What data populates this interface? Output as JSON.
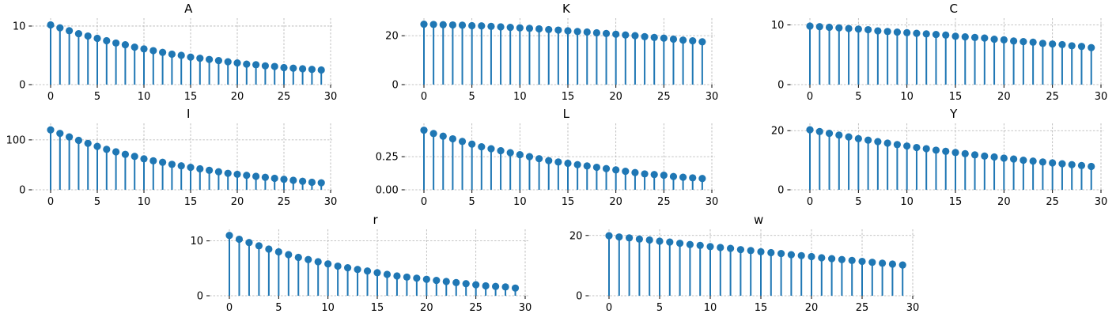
{
  "style": {
    "accent": "#1f77b4",
    "grid": "#b0b0b0"
  },
  "chart_data": [
    {
      "type": "stem",
      "title": "A",
      "x_range": [
        0,
        29
      ],
      "xlim": [
        -2,
        30
      ],
      "ylim": [
        0,
        10.4
      ],
      "x_ticks": [
        0,
        5,
        10,
        15,
        20,
        25,
        30
      ],
      "y_ticks": [
        0,
        10
      ],
      "y_tick_labels": [
        "0",
        "10"
      ],
      "grid": true,
      "values": [
        10.2,
        9.7,
        9.2,
        8.7,
        8.3,
        7.9,
        7.5,
        7.1,
        6.8,
        6.4,
        6.1,
        5.8,
        5.5,
        5.2,
        5.0,
        4.7,
        4.5,
        4.3,
        4.1,
        3.9,
        3.7,
        3.5,
        3.4,
        3.2,
        3.1,
        2.9,
        2.8,
        2.7,
        2.6,
        2.5
      ]
    },
    {
      "type": "stem",
      "title": "K",
      "x_range": [
        0,
        29
      ],
      "xlim": [
        -2,
        30
      ],
      "ylim": [
        0,
        24.9
      ],
      "x_ticks": [
        0,
        5,
        10,
        15,
        20,
        25,
        30
      ],
      "y_ticks": [
        0,
        20
      ],
      "y_tick_labels": [
        "0",
        "20"
      ],
      "grid": true,
      "values": [
        24.7,
        24.6,
        24.5,
        24.4,
        24.3,
        24.1,
        24.0,
        23.8,
        23.6,
        23.4,
        23.2,
        23.0,
        22.8,
        22.5,
        22.3,
        22.0,
        21.7,
        21.5,
        21.2,
        20.9,
        20.6,
        20.3,
        20.0,
        19.6,
        19.3,
        19.0,
        18.6,
        18.2,
        17.9,
        17.5
      ]
    },
    {
      "type": "stem",
      "title": "C",
      "x_range": [
        0,
        29
      ],
      "xlim": [
        -2,
        30
      ],
      "ylim": [
        0,
        10.2
      ],
      "x_ticks": [
        0,
        5,
        10,
        15,
        20,
        25,
        30
      ],
      "y_ticks": [
        0,
        10
      ],
      "y_tick_labels": [
        "0",
        "10"
      ],
      "grid": true,
      "values": [
        9.8,
        9.7,
        9.6,
        9.5,
        9.4,
        9.3,
        9.2,
        9.0,
        8.9,
        8.8,
        8.7,
        8.6,
        8.5,
        8.4,
        8.3,
        8.1,
        8.0,
        7.9,
        7.8,
        7.6,
        7.5,
        7.3,
        7.2,
        7.1,
        6.9,
        6.8,
        6.7,
        6.5,
        6.4,
        6.2
      ]
    },
    {
      "type": "stem",
      "title": "I",
      "x_range": [
        0,
        29
      ],
      "xlim": [
        -2,
        30
      ],
      "ylim": [
        0,
        122
      ],
      "x_ticks": [
        0,
        5,
        10,
        15,
        20,
        25,
        30
      ],
      "y_ticks": [
        0,
        100
      ],
      "y_tick_labels": [
        "0",
        "100"
      ],
      "grid": true,
      "values": [
        120,
        113,
        106,
        99,
        93,
        87,
        81,
        76,
        71,
        67,
        62,
        58,
        55,
        51,
        48,
        45,
        42,
        39,
        36,
        33,
        31,
        29,
        27,
        25,
        23,
        21,
        19,
        17,
        15,
        14
      ]
    },
    {
      "type": "stem",
      "title": "L",
      "x_range": [
        0,
        29
      ],
      "xlim": [
        -2,
        30
      ],
      "ylim": [
        0,
        0.46
      ],
      "x_ticks": [
        0,
        5,
        10,
        15,
        20,
        25,
        30
      ],
      "y_ticks": [
        0,
        0.25
      ],
      "y_tick_labels": [
        "0.00",
        "0.25"
      ],
      "grid": true,
      "values": [
        0.45,
        0.425,
        0.405,
        0.385,
        0.365,
        0.345,
        0.325,
        0.31,
        0.295,
        0.28,
        0.265,
        0.25,
        0.235,
        0.22,
        0.21,
        0.2,
        0.19,
        0.18,
        0.17,
        0.16,
        0.15,
        0.14,
        0.13,
        0.12,
        0.115,
        0.11,
        0.1,
        0.095,
        0.09,
        0.085
      ]
    },
    {
      "type": "stem",
      "title": "Y",
      "x_range": [
        0,
        29
      ],
      "xlim": [
        -2,
        30
      ],
      "ylim": [
        0,
        20.6
      ],
      "x_ticks": [
        0,
        5,
        10,
        15,
        20,
        25,
        30
      ],
      "y_ticks": [
        0,
        20
      ],
      "y_tick_labels": [
        "0",
        "20"
      ],
      "grid": true,
      "values": [
        20.3,
        19.7,
        19.1,
        18.5,
        17.9,
        17.3,
        16.8,
        16.3,
        15.8,
        15.3,
        14.8,
        14.3,
        13.9,
        13.4,
        13.0,
        12.6,
        12.2,
        11.8,
        11.4,
        11.1,
        10.7,
        10.4,
        10.0,
        9.7,
        9.4,
        9.1,
        8.8,
        8.5,
        8.2,
        7.9
      ]
    },
    {
      "type": "stem",
      "title": "r",
      "x_range": [
        0,
        29
      ],
      "xlim": [
        -2,
        30
      ],
      "ylim": [
        0,
        11.1
      ],
      "x_ticks": [
        0,
        5,
        10,
        15,
        20,
        25,
        30
      ],
      "y_ticks": [
        0,
        10
      ],
      "y_tick_labels": [
        "0",
        "10"
      ],
      "grid": true,
      "values": [
        11.0,
        10.3,
        9.7,
        9.1,
        8.5,
        8.0,
        7.5,
        7.0,
        6.6,
        6.2,
        5.8,
        5.4,
        5.1,
        4.8,
        4.5,
        4.2,
        3.9,
        3.6,
        3.4,
        3.2,
        3.0,
        2.8,
        2.6,
        2.4,
        2.2,
        2.0,
        1.8,
        1.7,
        1.6,
        1.4
      ]
    },
    {
      "type": "stem",
      "title": "w",
      "x_range": [
        0,
        29
      ],
      "xlim": [
        -2,
        30
      ],
      "ylim": [
        0,
        20.2
      ],
      "x_ticks": [
        0,
        5,
        10,
        15,
        20,
        25,
        30
      ],
      "y_ticks": [
        0,
        20
      ],
      "y_tick_labels": [
        "0",
        "20"
      ],
      "grid": true,
      "values": [
        19.9,
        19.5,
        19.2,
        18.8,
        18.5,
        18.1,
        17.8,
        17.4,
        17.0,
        16.7,
        16.3,
        16.0,
        15.7,
        15.3,
        15.0,
        14.6,
        14.3,
        14.0,
        13.6,
        13.3,
        13.0,
        12.6,
        12.3,
        12.0,
        11.7,
        11.4,
        11.1,
        10.8,
        10.5,
        10.2
      ]
    }
  ]
}
